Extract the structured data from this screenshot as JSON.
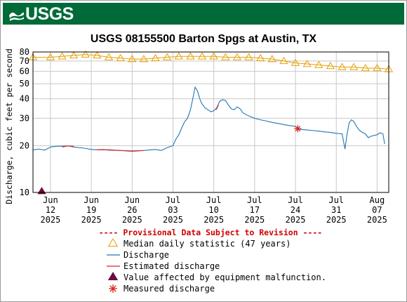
{
  "brand": {
    "logo_text": "USGS"
  },
  "chart_data": {
    "type": "line",
    "title": "USGS 08155500 Barton Spgs at Austin, TX",
    "ylabel": "Discharge, cubic feet per second",
    "xlabel": "",
    "y_scale": "log",
    "ylim": [
      10,
      80
    ],
    "xlim": [
      "2025-06-09",
      "2025-08-09"
    ],
    "y_ticks": [
      10,
      20,
      30,
      40,
      50,
      60,
      70,
      80
    ],
    "x_ticks": [
      {
        "date": "2025-06-12",
        "label": [
          "Jun",
          "12",
          "2025"
        ]
      },
      {
        "date": "2025-06-19",
        "label": [
          "Jun",
          "19",
          "2025"
        ]
      },
      {
        "date": "2025-06-26",
        "label": [
          "Jun",
          "26",
          "2025"
        ]
      },
      {
        "date": "2025-07-03",
        "label": [
          "Jul",
          "03",
          "2025"
        ]
      },
      {
        "date": "2025-07-10",
        "label": [
          "Jul",
          "10",
          "2025"
        ]
      },
      {
        "date": "2025-07-17",
        "label": [
          "Jul",
          "17",
          "2025"
        ]
      },
      {
        "date": "2025-07-24",
        "label": [
          "Jul",
          "24",
          "2025"
        ]
      },
      {
        "date": "2025-07-31",
        "label": [
          "Jul",
          "31",
          "2025"
        ]
      },
      {
        "date": "2025-08-07",
        "label": [
          "Aug",
          "07",
          "2025"
        ]
      }
    ],
    "grid": true,
    "provisional_note": "---- Provisional Data Subject to Revision ----",
    "colors": {
      "median": "#e8a000",
      "discharge": "#1f77b4",
      "estimated": "#d62728",
      "malfunction": "#6b0d3f",
      "measured": "#d62728",
      "note": "#cc0000",
      "grid": "#c8c8c8"
    },
    "legend": {
      "placement": "bottom",
      "entries": [
        {
          "key": "median",
          "label": "Median daily statistic (47 years)"
        },
        {
          "key": "discharge",
          "label": "Discharge"
        },
        {
          "key": "estimated",
          "label": "Estimated discharge"
        },
        {
          "key": "malfunction",
          "label": "Value affected by equipment malfunction."
        },
        {
          "key": "measured",
          "label": "Measured discharge"
        }
      ]
    },
    "series": [
      {
        "key": "median",
        "points": [
          [
            "2025-06-09",
            74
          ],
          [
            "2025-06-12",
            74
          ],
          [
            "2025-06-14",
            75
          ],
          [
            "2025-06-16",
            76
          ],
          [
            "2025-06-18",
            77
          ],
          [
            "2025-06-20",
            76
          ],
          [
            "2025-06-22",
            74
          ],
          [
            "2025-06-24",
            73
          ],
          [
            "2025-06-26",
            72
          ],
          [
            "2025-06-28",
            72
          ],
          [
            "2025-06-30",
            73
          ],
          [
            "2025-07-02",
            74
          ],
          [
            "2025-07-04",
            75
          ],
          [
            "2025-07-06",
            75
          ],
          [
            "2025-07-08",
            75
          ],
          [
            "2025-07-10",
            75
          ],
          [
            "2025-07-12",
            74
          ],
          [
            "2025-07-14",
            74
          ],
          [
            "2025-07-16",
            74
          ],
          [
            "2025-07-18",
            73
          ],
          [
            "2025-07-20",
            72
          ],
          [
            "2025-07-22",
            70
          ],
          [
            "2025-07-24",
            68
          ],
          [
            "2025-07-26",
            67
          ],
          [
            "2025-07-28",
            66
          ],
          [
            "2025-07-30",
            65
          ],
          [
            "2025-08-01",
            64
          ],
          [
            "2025-08-03",
            64
          ],
          [
            "2025-08-05",
            63
          ],
          [
            "2025-08-07",
            63
          ],
          [
            "2025-08-09",
            62
          ]
        ]
      },
      {
        "key": "discharge",
        "points": [
          [
            "2025-06-09",
            18.8
          ],
          [
            "2025-06-10",
            19.0
          ],
          [
            "2025-06-11",
            18.7
          ],
          [
            "2025-06-11.6",
            19.2
          ],
          [
            "2025-06-12",
            19.6
          ],
          [
            "2025-06-13",
            19.8
          ],
          [
            "2025-06-15",
            19.9
          ],
          [
            "2025-06-16",
            19.6
          ],
          [
            "2025-06-17",
            19.4
          ],
          [
            "2025-06-18",
            19.2
          ],
          [
            "2025-06-19",
            18.9
          ],
          [
            "2025-06-20",
            18.8
          ],
          [
            "2025-06-21",
            18.9
          ],
          [
            "2025-06-22",
            18.7
          ],
          [
            "2025-06-24",
            18.6
          ],
          [
            "2025-06-26",
            18.5
          ],
          [
            "2025-06-28",
            18.6
          ],
          [
            "2025-06-30",
            18.9
          ],
          [
            "2025-07-01",
            18.6
          ],
          [
            "2025-07-02",
            19.4
          ],
          [
            "2025-07-03",
            20.0
          ],
          [
            "2025-07-03.5",
            22.0
          ],
          [
            "2025-07-04",
            23.5
          ],
          [
            "2025-07-04.5",
            26.0
          ],
          [
            "2025-07-05",
            28.5
          ],
          [
            "2025-07-05.5",
            30.0
          ],
          [
            "2025-07-06",
            34.0
          ],
          [
            "2025-07-06.4",
            40.0
          ],
          [
            "2025-07-06.8",
            47.5
          ],
          [
            "2025-07-07.2",
            45.0
          ],
          [
            "2025-07-07.6",
            40.0
          ],
          [
            "2025-07-08",
            37.0
          ],
          [
            "2025-07-08.5",
            35.0
          ],
          [
            "2025-07-09",
            34.0
          ],
          [
            "2025-07-09.5",
            33.0
          ],
          [
            "2025-07-10",
            33.5
          ],
          [
            "2025-07-10.5",
            35.0
          ],
          [
            "2025-07-11",
            38.5
          ],
          [
            "2025-07-11.5",
            39.5
          ],
          [
            "2025-07-12",
            39.0
          ],
          [
            "2025-07-12.5",
            36.5
          ],
          [
            "2025-07-13",
            34.5
          ],
          [
            "2025-07-13.5",
            34.0
          ],
          [
            "2025-07-14",
            35.5
          ],
          [
            "2025-07-14.5",
            34.5
          ],
          [
            "2025-07-15",
            32.5
          ],
          [
            "2025-07-16",
            31.0
          ],
          [
            "2025-07-17",
            30.0
          ],
          [
            "2025-07-18",
            29.3
          ],
          [
            "2025-07-19",
            28.8
          ],
          [
            "2025-07-20",
            28.2
          ],
          [
            "2025-07-21",
            27.8
          ],
          [
            "2025-07-22",
            27.3
          ],
          [
            "2025-07-23",
            26.9
          ],
          [
            "2025-07-24",
            26.6
          ],
          [
            "2025-07-24.5",
            25.6
          ],
          [
            "2025-07-25",
            25.4
          ],
          [
            "2025-07-26",
            25.2
          ],
          [
            "2025-07-27",
            25.0
          ],
          [
            "2025-07-28",
            24.8
          ],
          [
            "2025-07-29",
            24.5
          ],
          [
            "2025-07-30",
            24.3
          ],
          [
            "2025-07-31",
            24.0
          ],
          [
            "2025-08-01",
            23.8
          ],
          [
            "2025-08-01.5",
            19.0
          ],
          [
            "2025-08-01.8",
            23.0
          ],
          [
            "2025-08-02.2",
            28.0
          ],
          [
            "2025-08-02.6",
            29.3
          ],
          [
            "2025-08-03",
            28.6
          ],
          [
            "2025-08-03.5",
            26.5
          ],
          [
            "2025-08-04",
            25.0
          ],
          [
            "2025-08-04.5",
            24.3
          ],
          [
            "2025-08-05",
            23.8
          ],
          [
            "2025-08-05.5",
            22.5
          ],
          [
            "2025-08-06",
            23.0
          ],
          [
            "2025-08-07",
            23.5
          ],
          [
            "2025-08-07.5",
            24.2
          ],
          [
            "2025-08-08",
            23.8
          ],
          [
            "2025-08-08.3",
            20.5
          ]
        ]
      },
      {
        "key": "estimated",
        "segments": [
          [
            [
              "2025-06-14",
              19.6
            ],
            [
              "2025-06-15",
              19.9
            ],
            [
              "2025-06-16",
              19.8
            ]
          ],
          [
            [
              "2025-06-20",
              18.8
            ],
            [
              "2025-06-22",
              18.8
            ],
            [
              "2025-06-24",
              18.6
            ],
            [
              "2025-06-26",
              18.4
            ],
            [
              "2025-06-28",
              18.6
            ]
          ],
          [
            [
              "2025-07-10.4",
              34.0
            ],
            [
              "2025-07-10.8",
              36.5
            ]
          ]
        ]
      },
      {
        "key": "malfunction",
        "points": [
          [
            "2025-06-10.5",
            10.2
          ]
        ]
      },
      {
        "key": "measured",
        "points": [
          [
            "2025-07-24.4",
            25.7
          ]
        ]
      }
    ]
  }
}
